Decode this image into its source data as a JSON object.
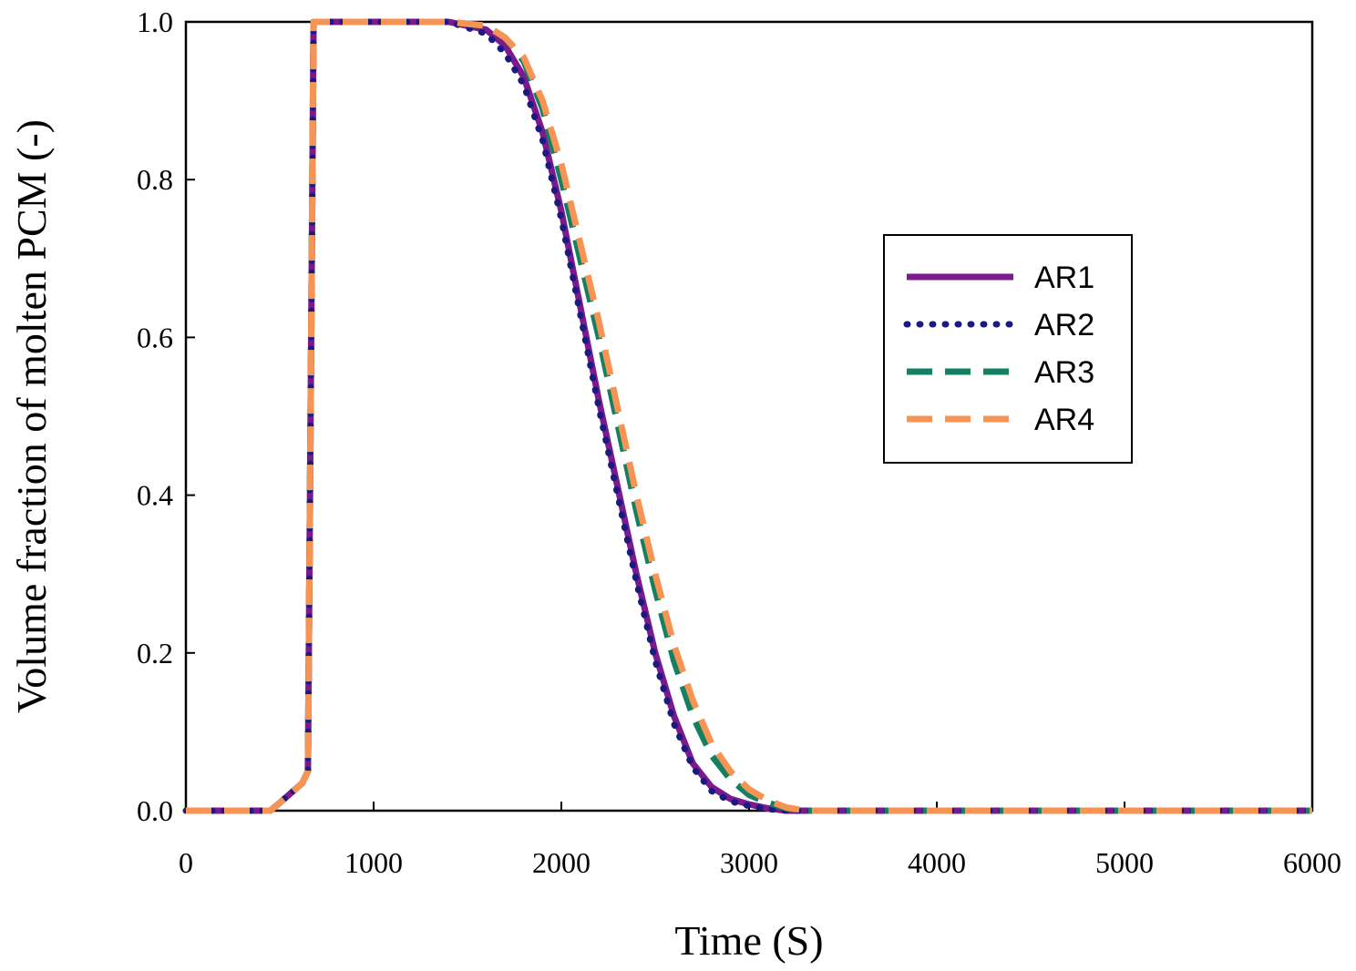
{
  "chart_data": {
    "type": "line",
    "title": "",
    "xlabel": "Time (S)",
    "ylabel": "Volume fraction of molten PCM (-)",
    "xlim": [
      0,
      6000
    ],
    "ylim": [
      0,
      1.0
    ],
    "xticks": [
      0,
      1000,
      2000,
      3000,
      4000,
      5000,
      6000
    ],
    "xtick_labels": [
      "0",
      "1000",
      "2000",
      "3000",
      "4000",
      "5000",
      "6000"
    ],
    "yticks": [
      0,
      0.2,
      0.4,
      0.6,
      0.8,
      1.0
    ],
    "ytick_labels": [
      "0.0",
      "0.2",
      "0.4",
      "0.6",
      "0.8",
      "1.0"
    ],
    "grid": false,
    "legend_position": "right",
    "series": [
      {
        "name": "AR1",
        "color": "#7b1a8e",
        "style": "solid",
        "x": [
          0,
          450,
          500,
          620,
          650,
          680,
          1400,
          1600,
          1700,
          1800,
          1900,
          2000,
          2100,
          2200,
          2300,
          2400,
          2500,
          2600,
          2700,
          2800,
          2900,
          3000,
          3100,
          3200,
          3300,
          4000,
          5000,
          6000
        ],
        "y": [
          0,
          0,
          0.01,
          0.035,
          0.05,
          1.0,
          1.0,
          0.99,
          0.97,
          0.93,
          0.86,
          0.76,
          0.64,
          0.52,
          0.41,
          0.3,
          0.2,
          0.12,
          0.06,
          0.03,
          0.015,
          0.008,
          0.003,
          0.0,
          0.0,
          0.0,
          0.0,
          0.0
        ]
      },
      {
        "name": "AR2",
        "color": "#1a1a80",
        "style": "dotted",
        "x": [
          0,
          450,
          500,
          620,
          650,
          680,
          1400,
          1600,
          1700,
          1800,
          1900,
          2000,
          2100,
          2200,
          2300,
          2400,
          2500,
          2600,
          2700,
          2800,
          2900,
          3000,
          3100,
          3200,
          3300,
          4000,
          5000,
          6000
        ],
        "y": [
          0,
          0,
          0.01,
          0.035,
          0.05,
          1.0,
          1.0,
          0.985,
          0.96,
          0.92,
          0.85,
          0.75,
          0.63,
          0.51,
          0.4,
          0.29,
          0.19,
          0.11,
          0.055,
          0.025,
          0.012,
          0.006,
          0.002,
          0.0,
          0.0,
          0.0,
          0.0,
          0.0
        ]
      },
      {
        "name": "AR3",
        "color": "#138062",
        "style": "dashed",
        "x": [
          0,
          450,
          500,
          620,
          650,
          680,
          1400,
          1600,
          1700,
          1800,
          1900,
          2000,
          2100,
          2200,
          2300,
          2400,
          2500,
          2600,
          2700,
          2800,
          2900,
          3000,
          3100,
          3200,
          3300,
          4000,
          5000,
          6000
        ],
        "y": [
          0,
          0,
          0.01,
          0.035,
          0.05,
          1.0,
          1.0,
          0.995,
          0.98,
          0.95,
          0.89,
          0.8,
          0.7,
          0.6,
          0.49,
          0.38,
          0.28,
          0.19,
          0.12,
          0.07,
          0.04,
          0.02,
          0.01,
          0.003,
          0.0,
          0.0,
          0.0,
          0.0
        ]
      },
      {
        "name": "AR4",
        "color": "#f79454",
        "style": "dashed",
        "x": [
          0,
          450,
          500,
          620,
          650,
          680,
          1400,
          1600,
          1700,
          1800,
          1900,
          2000,
          2100,
          2200,
          2300,
          2400,
          2500,
          2600,
          2700,
          2800,
          2900,
          3000,
          3100,
          3200,
          3300,
          4000,
          5000,
          6000
        ],
        "y": [
          0,
          0,
          0.01,
          0.035,
          0.05,
          1.0,
          1.0,
          0.995,
          0.98,
          0.955,
          0.9,
          0.82,
          0.72,
          0.62,
          0.51,
          0.4,
          0.3,
          0.21,
          0.14,
          0.085,
          0.05,
          0.027,
          0.013,
          0.004,
          0.0,
          0.0,
          0.0,
          0.0
        ]
      }
    ]
  }
}
